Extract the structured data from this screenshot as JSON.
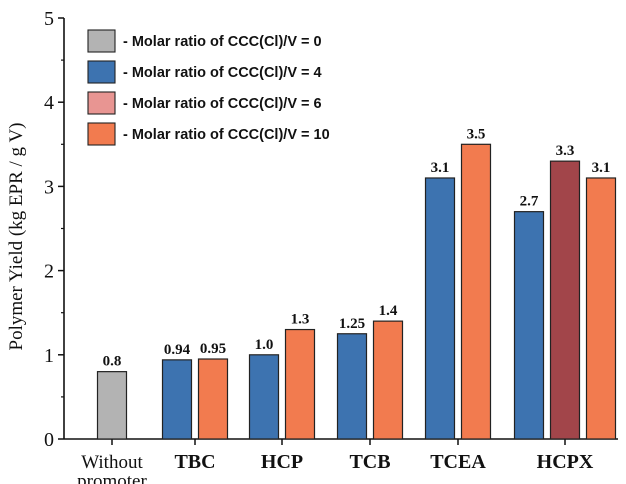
{
  "chart_data": {
    "type": "bar",
    "title": "",
    "xlabel": "",
    "ylabel": "Polymer Yield (kg EPR / g V)",
    "ylim": [
      0,
      5
    ],
    "yticks": [
      "0",
      "1",
      "2",
      "3",
      "4",
      "5"
    ],
    "grid": false,
    "legend_position": "top-left",
    "legend": [
      {
        "label": "- Molar ratio of CCC(Cl)/V = 0",
        "color": "#b3b3b3"
      },
      {
        "label": "- Molar ratio of CCC(Cl)/V = 4",
        "color": "#3d73b0"
      },
      {
        "label": "- Molar ratio of CCC(Cl)/V = 6",
        "color": "#e89592"
      },
      {
        "label": "- Molar ratio of CCC(Cl)/V = 10",
        "color": "#f27b4f"
      }
    ],
    "groups": [
      {
        "category": [
          "Without",
          "promoter"
        ],
        "bold": false,
        "bars": [
          {
            "value": 0.8,
            "label": "0.8",
            "color": "#b3b3b3"
          }
        ]
      },
      {
        "category": [
          "TBC"
        ],
        "bold": true,
        "bars": [
          {
            "value": 0.94,
            "label": "0.94",
            "color": "#3d73b0"
          },
          {
            "value": 0.95,
            "label": "0.95",
            "color": "#f27b4f"
          }
        ]
      },
      {
        "category": [
          "HCP"
        ],
        "bold": true,
        "bars": [
          {
            "value": 1.0,
            "label": "1.0",
            "color": "#3d73b0"
          },
          {
            "value": 1.3,
            "label": "1.3",
            "color": "#f27b4f"
          }
        ]
      },
      {
        "category": [
          "TCB"
        ],
        "bold": true,
        "bars": [
          {
            "value": 1.25,
            "label": "1.25",
            "color": "#3d73b0"
          },
          {
            "value": 1.4,
            "label": "1.4",
            "color": "#f27b4f"
          }
        ]
      },
      {
        "category": [
          "TCEA"
        ],
        "bold": true,
        "bars": [
          {
            "value": 3.1,
            "label": "3.1",
            "color": "#3d73b0"
          },
          {
            "value": 3.5,
            "label": "3.5",
            "color": "#f27b4f"
          }
        ]
      },
      {
        "category": [
          "HCPX"
        ],
        "bold": true,
        "bars": [
          {
            "value": 2.7,
            "label": "2.7",
            "color": "#3d73b0"
          },
          {
            "value": 3.3,
            "label": "3.3",
            "color": "#a2454a"
          },
          {
            "value": 3.1,
            "label": "3.1",
            "color": "#f27b4f"
          }
        ]
      }
    ]
  }
}
